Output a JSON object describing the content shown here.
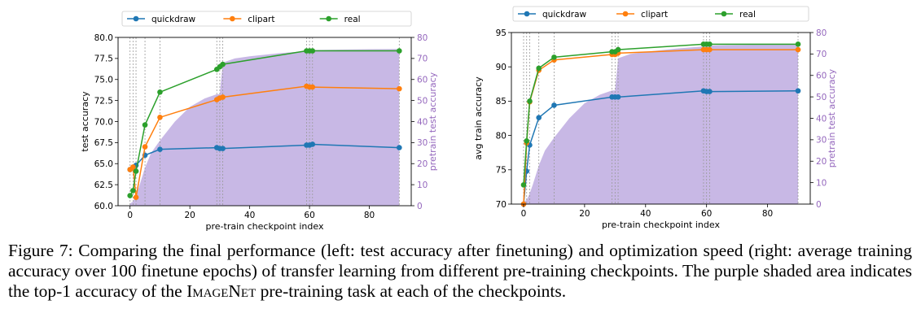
{
  "chart_data": [
    {
      "type": "line",
      "xlabel": "pre-train checkpoint index",
      "ylabel": "test accuracy",
      "y2label": "pretrain test accuracy",
      "xlim": [
        -4,
        94
      ],
      "ylim": [
        60,
        80
      ],
      "y2lim": [
        0,
        80
      ],
      "xticks": [
        0,
        20,
        40,
        60,
        80
      ],
      "yticks": [
        60.0,
        62.5,
        65.0,
        67.5,
        70.0,
        72.5,
        75.0,
        77.5,
        80.0
      ],
      "y2ticks": [
        0,
        10,
        20,
        30,
        40,
        50,
        60,
        70,
        80
      ],
      "grid": false,
      "legend_position": "top",
      "vlines": [
        0,
        1,
        2,
        5,
        10,
        29,
        30,
        31,
        59,
        60,
        61,
        90
      ],
      "series": [
        {
          "name": "quickdraw",
          "color": "#1f77b4",
          "x": [
            0,
            1,
            2,
            5,
            10,
            29,
            30,
            31,
            59,
            60,
            61,
            90
          ],
          "y": [
            64.3,
            64.5,
            64.8,
            66.0,
            66.7,
            66.9,
            66.8,
            66.8,
            67.2,
            67.2,
            67.3,
            66.9
          ]
        },
        {
          "name": "clipart",
          "color": "#ff7f0e",
          "x": [
            0,
            1,
            2,
            5,
            10,
            29,
            30,
            31,
            59,
            60,
            61,
            90
          ],
          "y": [
            64.3,
            64.6,
            61.0,
            67.0,
            70.5,
            72.6,
            72.8,
            72.9,
            74.2,
            74.1,
            74.1,
            73.9
          ]
        },
        {
          "name": "real",
          "color": "#2ca02c",
          "x": [
            0,
            1,
            2,
            5,
            10,
            29,
            30,
            31,
            59,
            60,
            61,
            90
          ],
          "y": [
            61.2,
            61.8,
            64.1,
            69.6,
            73.5,
            76.2,
            76.5,
            76.8,
            78.4,
            78.4,
            78.4,
            78.4
          ]
        }
      ],
      "pretrain_curve": {
        "color": "#b39ddb",
        "x": [
          0,
          1,
          2,
          3,
          5,
          7,
          10,
          15,
          20,
          25,
          29,
          30,
          31,
          35,
          40,
          50,
          59,
          60,
          61,
          70,
          80,
          90
        ],
        "y": [
          1,
          2,
          5,
          9,
          18,
          25,
          31,
          40,
          47,
          51,
          53,
          53,
          68,
          70,
          71,
          72.5,
          73.5,
          74,
          74,
          74.2,
          74.4,
          74.5
        ]
      }
    },
    {
      "type": "line",
      "xlabel": "pre-train checkpoint index",
      "ylabel": "avg train accuracy",
      "y2label": "pretrain test accuracy",
      "xlim": [
        -4,
        94
      ],
      "ylim": [
        70,
        95
      ],
      "y2lim": [
        0,
        80
      ],
      "xticks": [
        0,
        20,
        40,
        60,
        80
      ],
      "yticks": [
        70,
        75,
        80,
        85,
        90,
        95
      ],
      "y2ticks": [
        0,
        10,
        20,
        30,
        40,
        50,
        60,
        70,
        80
      ],
      "grid": false,
      "legend_position": "top",
      "vlines": [
        0,
        1,
        2,
        5,
        10,
        29,
        30,
        31,
        59,
        60,
        61,
        90
      ],
      "series": [
        {
          "name": "quickdraw",
          "color": "#1f77b4",
          "x": [
            0,
            1,
            2,
            5,
            10,
            29,
            30,
            31,
            59,
            60,
            61,
            90
          ],
          "y": [
            70.0,
            74.8,
            78.6,
            82.6,
            84.4,
            85.6,
            85.6,
            85.6,
            86.5,
            86.4,
            86.4,
            86.5
          ]
        },
        {
          "name": "clipart",
          "color": "#ff7f0e",
          "x": [
            0,
            1,
            2,
            5,
            10,
            29,
            30,
            31,
            59,
            60,
            61,
            90
          ],
          "y": [
            70.0,
            78.9,
            84.9,
            89.5,
            91.0,
            91.8,
            91.8,
            92.0,
            92.5,
            92.5,
            92.5,
            92.5
          ]
        },
        {
          "name": "real",
          "color": "#2ca02c",
          "x": [
            0,
            1,
            2,
            5,
            10,
            29,
            30,
            31,
            59,
            60,
            61,
            90
          ],
          "y": [
            72.8,
            79.2,
            85.0,
            89.8,
            91.4,
            92.2,
            92.2,
            92.5,
            93.3,
            93.3,
            93.3,
            93.3
          ]
        }
      ],
      "pretrain_curve": {
        "color": "#b39ddb",
        "x": [
          0,
          1,
          2,
          3,
          5,
          7,
          10,
          15,
          20,
          25,
          29,
          30,
          31,
          35,
          40,
          50,
          59,
          60,
          61,
          70,
          80,
          90
        ],
        "y": [
          1,
          2,
          5,
          9,
          18,
          25,
          31,
          40,
          47,
          51,
          53,
          53,
          68,
          70,
          71,
          72.5,
          73.5,
          74,
          74,
          74.2,
          74.4,
          74.5
        ]
      }
    }
  ],
  "caption": {
    "label": "Figure 7:",
    "part1": "Comparing the final performance (left: test accuracy after finetuning) and optimization speed (right: average training accuracy over 100 finetune epochs) of transfer learning from different pre-training checkpoints. The purple shaded area indicates the top-1 accuracy of the",
    "imagenet": "ImageNet",
    "part2": "pre-training task at each of the checkpoints."
  }
}
